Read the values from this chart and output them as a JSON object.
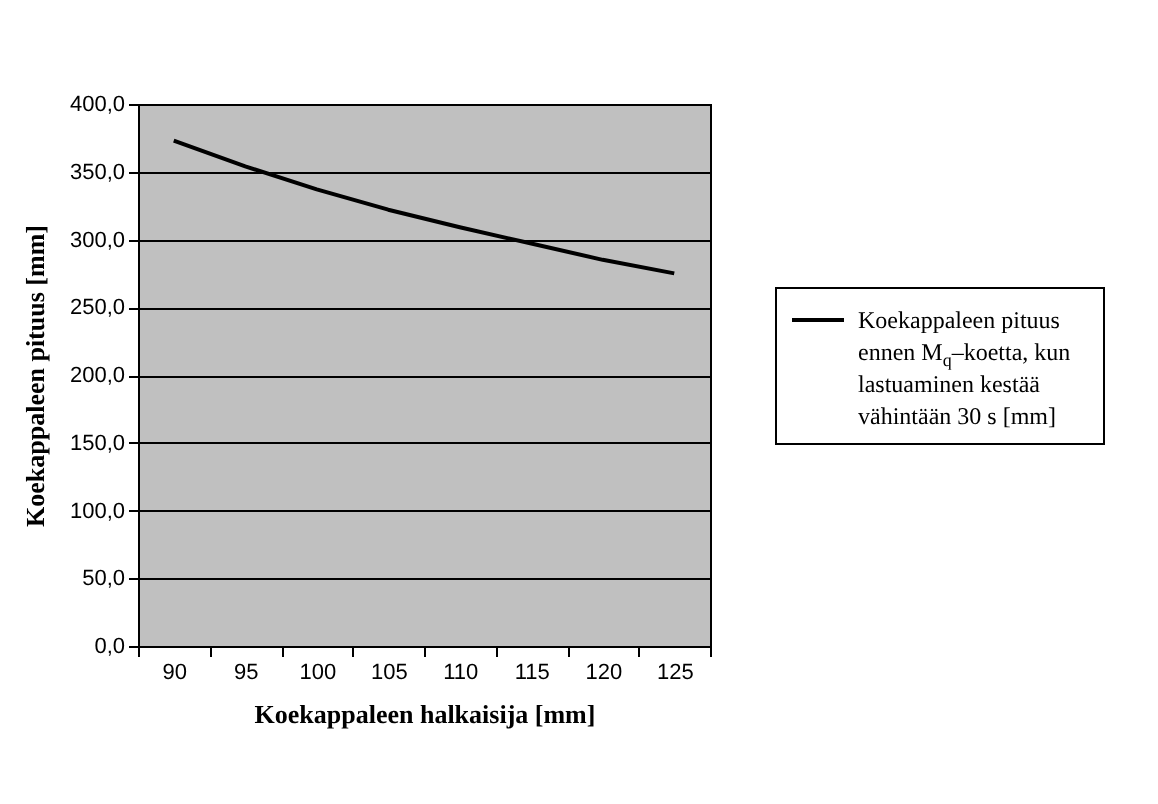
{
  "chart_data": {
    "type": "line",
    "xlabel": "Koekappaleen halkaisija [mm]",
    "ylabel": "Koekappaleen pituus [mm]",
    "categories": [
      "90",
      "95",
      "100",
      "105",
      "110",
      "115",
      "120",
      "125"
    ],
    "series": [
      {
        "name": "Koekappaleen pituus ennen M$_{q}$–koetta, kun lastuaminen kestää vähintään 30 s [mm]",
        "color": "#000000",
        "values": [
          373,
          354,
          337,
          322,
          309,
          297,
          285,
          275
        ]
      }
    ],
    "ylim": [
      0,
      400
    ],
    "yticks": [
      {
        "value": 0,
        "label": "0,0"
      },
      {
        "value": 50,
        "label": "50,0"
      },
      {
        "value": 100,
        "label": "100,0"
      },
      {
        "value": 150,
        "label": "150,0"
      },
      {
        "value": 200,
        "label": "200,0"
      },
      {
        "value": 250,
        "label": "250,0"
      },
      {
        "value": 300,
        "label": "300,0"
      },
      {
        "value": 350,
        "label": "350,0"
      },
      {
        "value": 400,
        "label": "400,0"
      }
    ],
    "grid": "y",
    "legend": "right",
    "marker": "none",
    "line_style": "solid"
  }
}
